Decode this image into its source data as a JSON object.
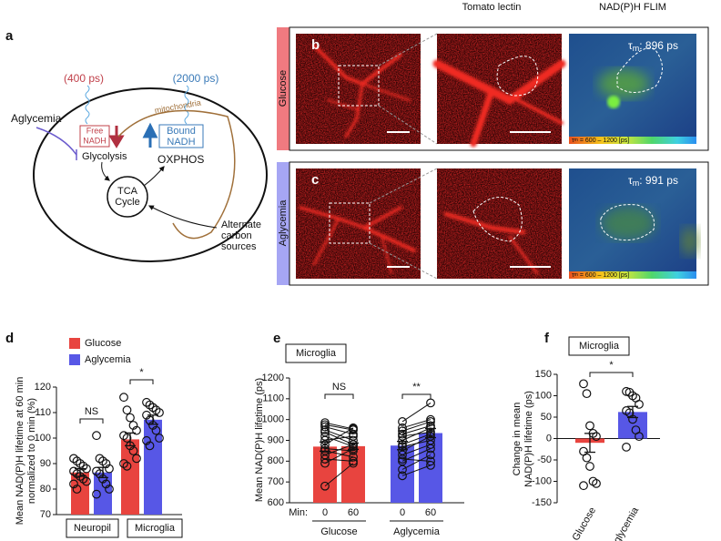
{
  "panel_labels": {
    "a": "a",
    "b": "b",
    "c": "c",
    "d": "d",
    "e": "e",
    "f": "f"
  },
  "diagram": {
    "free_lifetime": "(400 ps)",
    "bound_lifetime": "(2000 ps)",
    "stimulus": "Aglycemia",
    "free_nadh": [
      "Free",
      "NADH"
    ],
    "bound_nadh": [
      "Bound",
      "NADH"
    ],
    "mitochondria": "mitochondria",
    "glycolysis": "Glycolysis",
    "oxphos": "OXPHOS",
    "tca": [
      "TCA",
      "Cycle"
    ],
    "alternate": [
      "Alternate",
      "carbon",
      "sources"
    ]
  },
  "imaging": {
    "column_headers": [
      "Tomato lectin",
      "NAD(P)H FLIM"
    ],
    "rows": [
      {
        "label": "Glucose",
        "tau": {
          "symbol": "τ",
          "sub": "m",
          "text": ": 896 ps"
        }
      },
      {
        "label": "Aglycemia",
        "tau": {
          "symbol": "τ",
          "sub": "m",
          "text": ": 991 ps"
        }
      }
    ],
    "colorbar": {
      "symbol": "τ",
      "sub": "m",
      "text": " = 600 – 1200 [ps]"
    }
  },
  "chart_data": [
    {
      "type": "bar",
      "ylabel": [
        "Mean NAD(P)H lifetime at 60 min",
        "normalized to 0 min (%)"
      ],
      "categories": [
        "Neuropil",
        "Microglia"
      ],
      "series": [
        {
          "name": "Glucose",
          "color": "#e8443f",
          "values": [
            86.5,
            99.5
          ],
          "errors": [
            1.5,
            2.5
          ],
          "points": [
            [
              92,
              91,
              90,
              89,
              88,
              87,
              86,
              85,
              84,
              83,
              82,
              80
            ],
            [
              116,
              111,
              108,
              105,
              103,
              101,
              100,
              97,
              95,
              92,
              90,
              89
            ]
          ]
        },
        {
          "name": "Aglycemia",
          "color": "#5757e6",
          "values": [
            86.5,
            107.2
          ],
          "errors": [
            2,
            1.8
          ],
          "points": [
            [
              101,
              92,
              91,
              90,
              88,
              87,
              86,
              84,
              82,
              80,
              78
            ],
            [
              114,
              113,
              112,
              111,
              110,
              109,
              107,
              105,
              103,
              100,
              99,
              97
            ]
          ]
        }
      ],
      "ylim": [
        70,
        120
      ],
      "yticks": [
        70,
        80,
        90,
        100,
        110,
        120
      ],
      "annotations": [
        "NS",
        "*"
      ]
    },
    {
      "type": "bar",
      "title": "Microglia",
      "ylabel": "Mean NAD(P)H lifetime (ps)",
      "xlabel": "Min:",
      "categories": [
        "0",
        "60",
        "0",
        "60"
      ],
      "groups": [
        "Glucose",
        "Aglycemia"
      ],
      "colors": [
        "#e8443f",
        "#e8443f",
        "#5757e6",
        "#5757e6"
      ],
      "values": [
        870,
        872,
        875,
        935
      ],
      "errors": [
        22,
        15,
        20,
        22
      ],
      "points": [
        [
          985,
          975,
          965,
          950,
          940,
          920,
          900,
          880,
          860,
          850,
          830,
          810,
          790,
          680
        ],
        [
          955,
          950,
          930,
          900,
          880,
          870,
          920,
          960,
          850,
          820,
          880,
          800,
          860,
          790
        ],
        [
          990,
          960,
          945,
          930,
          920,
          900,
          880,
          870,
          850,
          830,
          810,
          800,
          760,
          730
        ],
        [
          1080,
          1000,
          990,
          970,
          940,
          960,
          930,
          900,
          920,
          880,
          800,
          860,
          830,
          780
        ]
      ],
      "ylim": [
        600,
        1200
      ],
      "yticks": [
        600,
        700,
        800,
        900,
        1000,
        1100,
        1200
      ],
      "annotations": [
        "NS",
        "**"
      ]
    },
    {
      "type": "bar",
      "title": "Microglia",
      "ylabel": [
        "Change in mean",
        "NAD(P)H lifetime (ps)"
      ],
      "categories": [
        "Glucose",
        "Aglycemia"
      ],
      "colors": [
        "#e8443f",
        "#5757e6"
      ],
      "values": [
        -10,
        62
      ],
      "errors": [
        22,
        13
      ],
      "points": [
        [
          128,
          105,
          30,
          12,
          5,
          -30,
          -45,
          -65,
          -100,
          -105,
          -110
        ],
        [
          110,
          108,
          100,
          95,
          80,
          65,
          60,
          45,
          20,
          5,
          -20
        ]
      ],
      "ylim": [
        -150,
        150
      ],
      "yticks": [
        -150,
        -100,
        -50,
        0,
        50,
        100,
        150
      ],
      "annotations": [
        "*"
      ]
    }
  ]
}
